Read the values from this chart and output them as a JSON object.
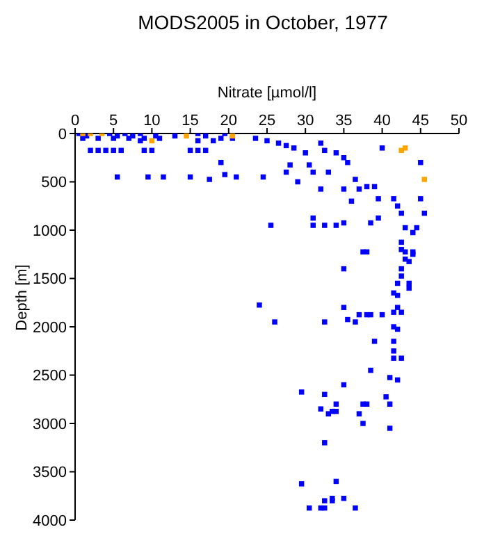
{
  "chart_data": {
    "type": "scatter",
    "title": "MODS2005 in October, 1977",
    "xlabel": "Nitrate [µmol/l]",
    "ylabel": "Depth [m]",
    "xlim": [
      0,
      50
    ],
    "xticks": [
      0,
      5,
      10,
      15,
      20,
      25,
      30,
      35,
      40,
      45,
      50
    ],
    "ylim": [
      4000,
      0
    ],
    "yticks": [
      0,
      500,
      1000,
      1500,
      2000,
      2500,
      3000,
      3500,
      4000
    ],
    "marker": "square",
    "series": [
      {
        "color": "#0000ff",
        "x": [
          0.5,
          1.5,
          4.5,
          5.5,
          6.5,
          7.5,
          8.5,
          10.5,
          13,
          16,
          17,
          19.5,
          1,
          3,
          5,
          7,
          9,
          11,
          8.5,
          16,
          18,
          2,
          3,
          4,
          5,
          6,
          9,
          10,
          15,
          16,
          17,
          19,
          20.5,
          23.5,
          25,
          26.5,
          27.5,
          28.5,
          30,
          32,
          32.5,
          34,
          35,
          35.5,
          36.5,
          38,
          39,
          39.5,
          41.5,
          42,
          42.5,
          43,
          44,
          44.5,
          45,
          45,
          45.5,
          19,
          19.5,
          17.5,
          5.5,
          9.5,
          11.5,
          15,
          21,
          24.5,
          25.5,
          31,
          32.5,
          34,
          35,
          31,
          27.5,
          28,
          29,
          30.5,
          31,
          32,
          33,
          35,
          36,
          37,
          40,
          38,
          38.5,
          39.5,
          43,
          44,
          42.5,
          37.5,
          42.5,
          43,
          44,
          43.5,
          42.5,
          42.5,
          35,
          42,
          43.5,
          43.5,
          41.5,
          42,
          24,
          26,
          32.5,
          35,
          35.5,
          36.5,
          37,
          38,
          38.5,
          40,
          41.5,
          42,
          42.5,
          41.5,
          42,
          39,
          41.5,
          41.5,
          41.5,
          42.5,
          38.5,
          41,
          42,
          35,
          29.5,
          32.5,
          32,
          33.5,
          33,
          34,
          34,
          37,
          37.5,
          38,
          40.5,
          41,
          37.5,
          41,
          32.5,
          29.5,
          34,
          33.5,
          35,
          32.5,
          33.5,
          30.5,
          32,
          32.5,
          36.5
        ],
        "values": [
          0,
          25,
          0,
          25,
          0,
          25,
          0,
          25,
          25,
          0,
          25,
          0,
          50,
          50,
          50,
          50,
          50,
          50,
          75,
          75,
          75,
          175,
          175,
          175,
          175,
          175,
          175,
          175,
          175,
          175,
          175,
          50,
          50,
          50,
          75,
          100,
          125,
          150,
          200,
          100,
          175,
          200,
          250,
          300,
          475,
          550,
          550,
          675,
          675,
          750,
          825,
          975,
          1025,
          975,
          300,
          675,
          825,
          300,
          425,
          475,
          450,
          450,
          450,
          450,
          450,
          450,
          950,
          950,
          950,
          950,
          925,
          875,
          400,
          325,
          500,
          325,
          400,
          575,
          400,
          575,
          700,
          575,
          150,
          1225,
          925,
          875,
          1225,
          1225,
          1125,
          1225,
          1200,
          1300,
          1250,
          1325,
          1400,
          1475,
          1400,
          1550,
          1550,
          1600,
          1650,
          1675,
          1775,
          1950,
          1950,
          1800,
          1925,
          1950,
          1875,
          1875,
          1875,
          1875,
          1850,
          1800,
          1850,
          2000,
          2025,
          2150,
          2150,
          2250,
          2325,
          2325,
          2450,
          2525,
          2550,
          2600,
          2675,
          2700,
          2850,
          2875,
          2900,
          2875,
          2800,
          2900,
          2800,
          2800,
          2725,
          2800,
          3000,
          3050,
          3200,
          3625,
          3600,
          3775,
          3775,
          3800,
          3800,
          3875,
          3875,
          3875,
          3875
        ]
      },
      {
        "color": "#ffa500",
        "x": [
          1,
          2,
          3.5,
          10,
          14.5,
          20.5,
          42.5,
          43,
          45.5
        ],
        "values": [
          0,
          0,
          0,
          75,
          25,
          25,
          175,
          150,
          475
        ]
      }
    ]
  }
}
